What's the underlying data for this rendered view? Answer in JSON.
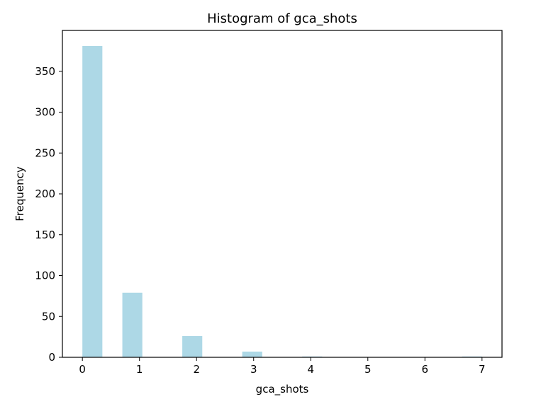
{
  "chart_data": {
    "type": "bar",
    "title": "Histogram of gca_shots",
    "xlabel": "gca_shots",
    "ylabel": "Frequency",
    "bin_edges": [
      0,
      0.35,
      0.7,
      1.05,
      1.4,
      1.75,
      2.1,
      2.45,
      2.8,
      3.15,
      3.5,
      3.85,
      4.2,
      4.55,
      4.9,
      5.25,
      5.6,
      5.95,
      6.3,
      6.65,
      7
    ],
    "values": [
      381,
      0,
      79,
      0,
      0,
      26,
      0,
      0,
      7,
      0,
      0,
      1,
      0,
      0,
      0,
      0,
      0,
      0,
      0,
      1
    ],
    "xlim": [
      -0.35,
      7.35
    ],
    "ylim": [
      0,
      400
    ],
    "xticks": [
      0,
      1,
      2,
      3,
      4,
      5,
      6,
      7
    ],
    "xtick_labels": [
      "0",
      "1",
      "2",
      "3",
      "4",
      "5",
      "6",
      "7"
    ],
    "yticks": [
      0,
      50,
      100,
      150,
      200,
      250,
      300,
      350
    ],
    "ytick_labels": [
      "0",
      "50",
      "100",
      "150",
      "200",
      "250",
      "300",
      "350"
    ],
    "bar_color": "#add8e6",
    "grid": false,
    "legend": "none"
  }
}
